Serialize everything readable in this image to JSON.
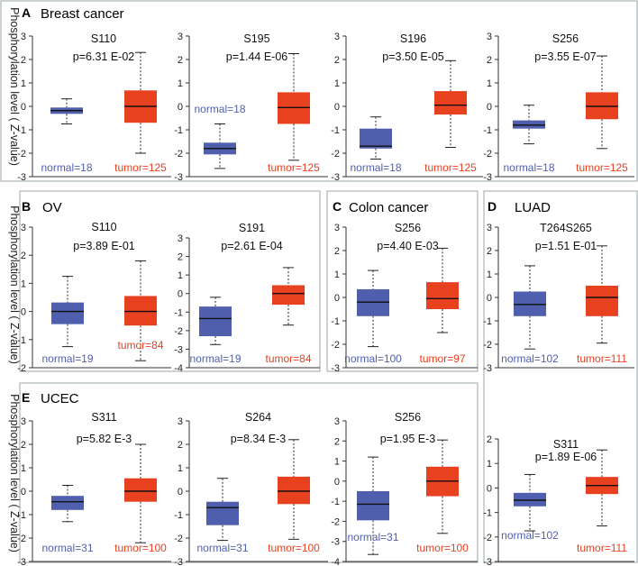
{
  "figure": {
    "y_axis_label": "Phosphorylation level ( Z-value)",
    "colors": {
      "normal": "#4f5fae",
      "tumor": "#e8411f",
      "axis": "#333333",
      "frame": "#9aa4a4"
    }
  },
  "panels": [
    {
      "letter": "A",
      "name": "Breast cancer"
    },
    {
      "letter": "B",
      "name": "OV"
    },
    {
      "letter": "C",
      "name": "Colon cancer"
    },
    {
      "letter": "D",
      "name": "LUAD"
    },
    {
      "letter": "E",
      "name": "UCEC"
    }
  ],
  "chart_data": [
    {
      "type": "boxplot",
      "panel": "A",
      "title": "S110",
      "p_value": "p=6.31 E-02",
      "ylim": [
        -3,
        3
      ],
      "yticks": [
        "3",
        "2",
        "1",
        "0",
        "-1",
        "-2",
        "-3"
      ],
      "normal": {
        "label": "normal=18",
        "min": -0.75,
        "q1": -0.32,
        "median": -0.18,
        "q3": -0.05,
        "max": 0.32
      },
      "tumor": {
        "label": "tumor=125",
        "min": -2.0,
        "q1": -0.7,
        "median": 0.0,
        "q3": 0.68,
        "max": 2.3
      }
    },
    {
      "type": "boxplot",
      "panel": "A",
      "title": "S195",
      "p_value": "p=1.44 E-06",
      "ylim": [
        -3,
        3
      ],
      "yticks": [
        "3",
        "2",
        "1",
        "0",
        "-1",
        "-2",
        "-3"
      ],
      "normal": {
        "label": "normal=18",
        "min": -2.65,
        "q1": -2.05,
        "median": -1.8,
        "q3": -1.55,
        "max": -0.75
      },
      "tumor": {
        "label": "tumor=125",
        "min": -2.3,
        "q1": -0.75,
        "median": -0.05,
        "q3": 0.6,
        "max": 2.25
      }
    },
    {
      "type": "boxplot",
      "panel": "A",
      "title": "S196",
      "p_value": "p=3.50 E-05",
      "ylim": [
        -3,
        3
      ],
      "yticks": [
        "3",
        "2",
        "1",
        "0",
        "-1",
        "-2",
        "-3"
      ],
      "normal": {
        "label": "normal=18",
        "min": -2.25,
        "q1": -1.8,
        "median": -1.7,
        "q3": -0.95,
        "max": -0.45
      },
      "tumor": {
        "label": "tumor=125",
        "min": -1.75,
        "q1": -0.35,
        "median": 0.05,
        "q3": 0.65,
        "max": 1.95
      }
    },
    {
      "type": "boxplot",
      "panel": "A",
      "title": "S256",
      "p_value": "p=3.55 E-07",
      "ylim": [
        -3,
        3
      ],
      "yticks": [
        "3",
        "2",
        "1",
        "0",
        "-1",
        "-2",
        "-3"
      ],
      "normal": {
        "label": "normal=18",
        "min": -1.6,
        "q1": -0.95,
        "median": -0.8,
        "q3": -0.6,
        "max": 0.05
      },
      "tumor": {
        "label": "tumor=125",
        "min": -1.8,
        "q1": -0.55,
        "median": 0.0,
        "q3": 0.6,
        "max": 2.15
      }
    },
    {
      "type": "boxplot",
      "panel": "B",
      "title": "S110",
      "p_value": "p=3.89 E-01",
      "ylim": [
        -2,
        3
      ],
      "yticks": [
        "3",
        "2",
        "1",
        "0",
        "-1",
        "-2"
      ],
      "normal": {
        "label": "normal=19",
        "min": -1.25,
        "q1": -0.45,
        "median": 0.0,
        "q3": 0.32,
        "max": 1.25
      },
      "tumor": {
        "label": "tumor=84",
        "min": -1.75,
        "q1": -0.5,
        "median": 0.0,
        "q3": 0.55,
        "max": 1.8
      }
    },
    {
      "type": "boxplot",
      "panel": "B",
      "title": "S191",
      "p_value": "p=2.61 E-04",
      "ylim": [
        -4,
        3
      ],
      "yticks": [
        "3",
        "2",
        "1",
        "0",
        "-1",
        "-2",
        "-3",
        "-4"
      ],
      "normal": {
        "label": "normal=19",
        "min": -2.75,
        "q1": -2.3,
        "median": -1.35,
        "q3": -0.7,
        "max": -0.2
      },
      "tumor": {
        "label": "tumor=84",
        "min": -1.7,
        "q1": -0.6,
        "median": 0.0,
        "q3": 0.45,
        "max": 1.4
      }
    },
    {
      "type": "boxplot",
      "panel": "C",
      "title": "S256",
      "p_value": "p=4.40 E-03",
      "ylim": [
        -3,
        3
      ],
      "yticks": [
        "3",
        "2",
        "1",
        "0",
        "-1",
        "-2",
        "-3"
      ],
      "normal": {
        "label": "normal=100",
        "min": -2.1,
        "q1": -0.8,
        "median": -0.2,
        "q3": 0.35,
        "max": 1.15
      },
      "tumor": {
        "label": "tumor=97",
        "min": -1.5,
        "q1": -0.5,
        "median": -0.05,
        "q3": 0.65,
        "max": 2.1
      }
    },
    {
      "type": "boxplot",
      "panel": "D",
      "title": "T264S265",
      "p_value": "p=1.51 E-01",
      "ylim": [
        -3,
        3
      ],
      "yticks": [
        "3",
        "2",
        "1",
        "0",
        "-1",
        "-2",
        "-3"
      ],
      "normal": {
        "label": "normal=102",
        "min": -2.2,
        "q1": -0.8,
        "median": -0.3,
        "q3": 0.25,
        "max": 1.35
      },
      "tumor": {
        "label": "tumor=111",
        "min": -1.95,
        "q1": -0.8,
        "median": 0.0,
        "q3": 0.5,
        "max": 2.2
      }
    },
    {
      "type": "boxplot",
      "panel": "E",
      "title": "S311",
      "p_value": "p=5.82 E-3",
      "ylim": [
        -3,
        3
      ],
      "yticks": [
        "3",
        "2",
        "1",
        "0",
        "-1",
        "-2",
        "-3"
      ],
      "normal": {
        "label": "normal=31",
        "min": -1.3,
        "q1": -0.8,
        "median": -0.45,
        "q3": -0.2,
        "max": 0.25
      },
      "tumor": {
        "label": "tumor=100",
        "min": -2.2,
        "q1": -0.45,
        "median": 0.0,
        "q3": 0.55,
        "max": 2.0
      }
    },
    {
      "type": "boxplot",
      "panel": "E",
      "title": "S264",
      "p_value": "p=8.34 E-3",
      "ylim": [
        -3,
        3
      ],
      "yticks": [
        "3",
        "2",
        "1",
        "0",
        "-1",
        "-2",
        "-3"
      ],
      "normal": {
        "label": "normal=31",
        "min": -2.1,
        "q1": -1.45,
        "median": -0.7,
        "q3": -0.45,
        "max": 0.55
      },
      "tumor": {
        "label": "tumor=100",
        "min": -2.05,
        "q1": -0.55,
        "median": 0.0,
        "q3": 0.62,
        "max": 2.2
      }
    },
    {
      "type": "boxplot",
      "panel": "E",
      "title": "S256",
      "p_value": "p=1.95 E-3",
      "ylim": [
        -4,
        3
      ],
      "yticks": [
        "3",
        "2",
        "1",
        "0",
        "-1",
        "-2",
        "-3",
        "-4"
      ],
      "normal": {
        "label": "normal=31",
        "min": -3.65,
        "q1": -1.95,
        "median": -1.15,
        "q3": -0.5,
        "max": 1.2
      },
      "tumor": {
        "label": "tumor=100",
        "min": -2.6,
        "q1": -0.75,
        "median": 0.0,
        "q3": 0.72,
        "max": 2.05
      }
    },
    {
      "type": "boxplot",
      "panel": "D",
      "title": "S311",
      "p_value": "p=1.89 E-06",
      "ylim": [
        -3,
        2
      ],
      "yticks": [
        "2",
        "1",
        "0",
        "-1",
        "-2",
        "-3"
      ],
      "normal": {
        "label": "normal=102",
        "min": -1.75,
        "q1": -0.75,
        "median": -0.5,
        "q3": -0.2,
        "max": 0.55
      },
      "tumor": {
        "label": "tumor=111",
        "min": -1.55,
        "q1": -0.25,
        "median": 0.1,
        "q3": 0.45,
        "max": 1.55
      }
    }
  ]
}
